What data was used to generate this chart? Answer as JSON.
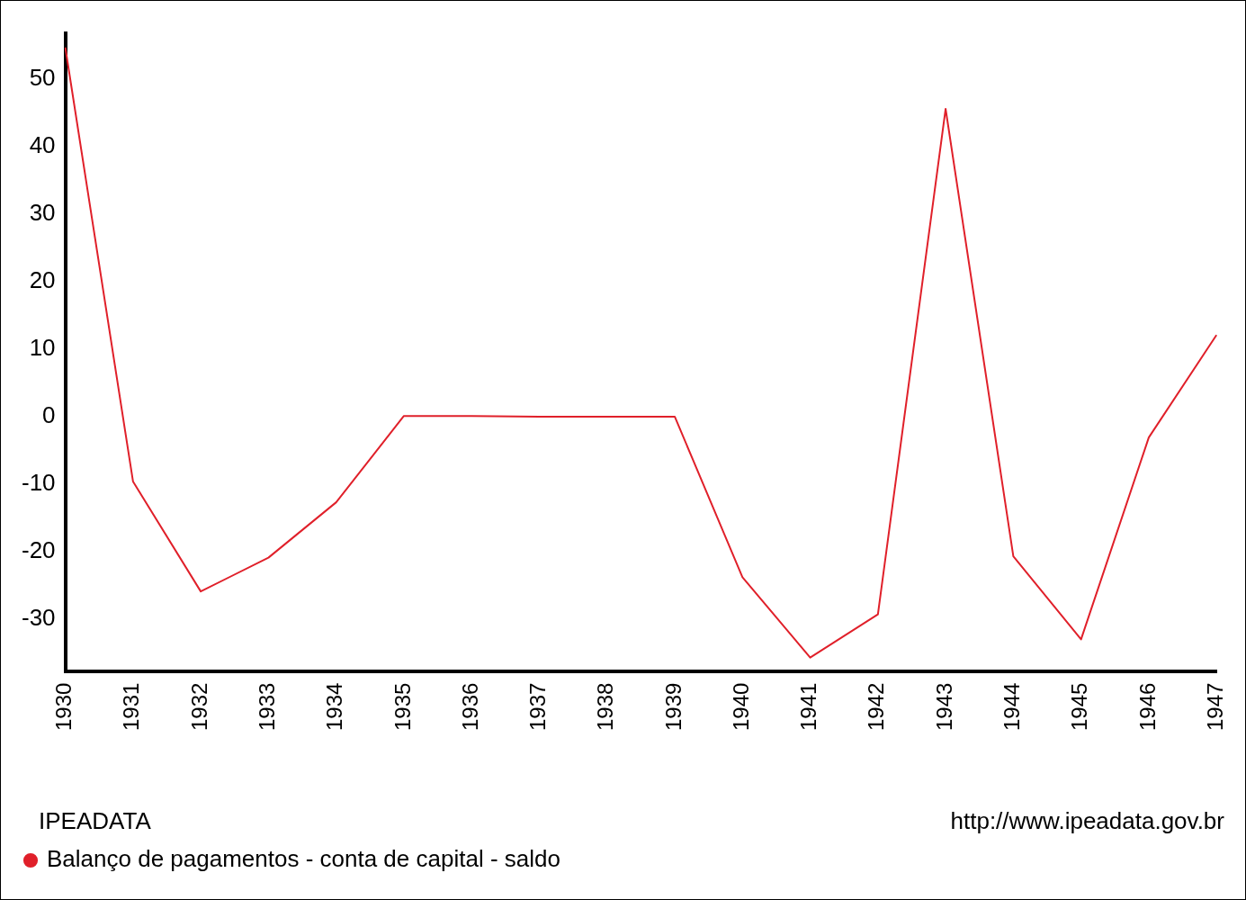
{
  "chart_data": {
    "type": "line",
    "categories": [
      "1930",
      "1931",
      "1932",
      "1933",
      "1934",
      "1935",
      "1936",
      "1937",
      "1938",
      "1939",
      "1940",
      "1941",
      "1942",
      "1943",
      "1944",
      "1945",
      "1946",
      "1947"
    ],
    "series": [
      {
        "name": "Balanço de pagamentos - conta de capital - saldo",
        "color": "#e0202a",
        "values": [
          54.7,
          -9.6,
          -25.9,
          -20.9,
          -12.7,
          0.1,
          0.1,
          0,
          0,
          0,
          -23.8,
          -35.7,
          -29.3,
          45.6,
          -20.7,
          -33,
          -3.1,
          12.1
        ]
      }
    ],
    "ylim": [
      -37.7,
      56.8
    ],
    "yticks": [
      -30,
      -20,
      -10,
      0,
      10,
      20,
      30,
      40,
      50
    ],
    "grid": false,
    "legend": "bottom left",
    "marker": "none",
    "line_style": "solid",
    "annotations": [
      "IPEADATA",
      "http://www.ipeadata.gov.br"
    ]
  }
}
